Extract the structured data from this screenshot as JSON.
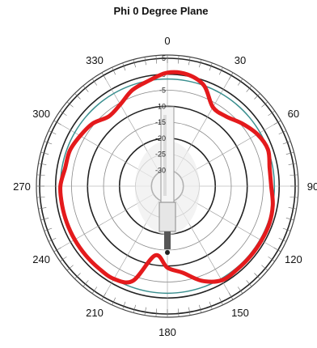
{
  "chart_data": {
    "type": "polar-line",
    "title": "Phi 0 Degree Plane",
    "angle_ticks": [
      "0",
      "30",
      "60",
      "90",
      "120",
      "150",
      "180",
      "210",
      "240",
      "270",
      "300",
      "330"
    ],
    "radial_ticks": [
      "-30",
      "-25",
      "-20",
      "-15",
      "-10",
      "-5",
      "0",
      "5"
    ],
    "radial_range": [
      -35,
      5
    ],
    "grid": true,
    "angles": [
      0,
      10,
      20,
      30,
      40,
      50,
      60,
      70,
      80,
      90,
      100,
      110,
      120,
      130,
      140,
      150,
      160,
      170,
      180,
      190,
      200,
      210,
      220,
      230,
      240,
      250,
      260,
      270,
      280,
      290,
      300,
      310,
      320,
      330,
      340,
      350
    ],
    "values": [
      0.5,
      0.5,
      -1.5,
      -6.5,
      -6.5,
      -4.5,
      -2.5,
      -1.5,
      -2.5,
      -2.5,
      -1.5,
      -1,
      -1,
      -1,
      -1,
      -1,
      -3.5,
      -7.5,
      -9.5,
      -13,
      -3.5,
      -1.5,
      -1.5,
      -1.5,
      -1.5,
      -1.5,
      -1.5,
      -1.5,
      -2.5,
      -2.5,
      -3.5,
      -4.5,
      -6.5,
      -5.5,
      -3,
      -1.5
    ],
    "series_color": "#e41a1c",
    "reference_color": "#3a8f8f",
    "reference_value": -1.5
  }
}
